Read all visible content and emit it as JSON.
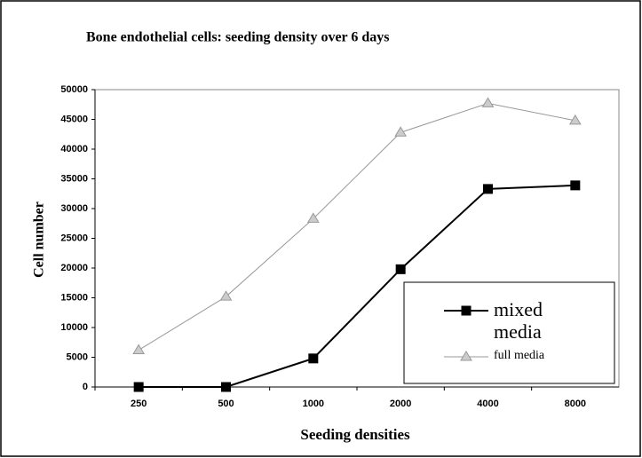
{
  "chart_data": {
    "type": "line",
    "title": "Bone endothelial cells: seeding density over 6 days",
    "x_label": "Seeding densities",
    "y_label": "Cell number",
    "categories": [
      "250",
      "500",
      "1000",
      "2000",
      "4000",
      "8000"
    ],
    "series": [
      {
        "name": "mixed media",
        "color": "#000000",
        "marker": "square",
        "values": [
          0,
          0,
          4800,
          19800,
          33300,
          33900
        ]
      },
      {
        "name": "full media",
        "color": "#999999",
        "marker": "triangle",
        "values": [
          6200,
          15200,
          28300,
          42800,
          47700,
          44800
        ]
      }
    ],
    "ylim": [
      0,
      50000
    ],
    "yticks": [
      0,
      5000,
      10000,
      15000,
      20000,
      25000,
      30000,
      35000,
      40000,
      45000,
      50000
    ],
    "grid": false,
    "legend": "lower right"
  }
}
